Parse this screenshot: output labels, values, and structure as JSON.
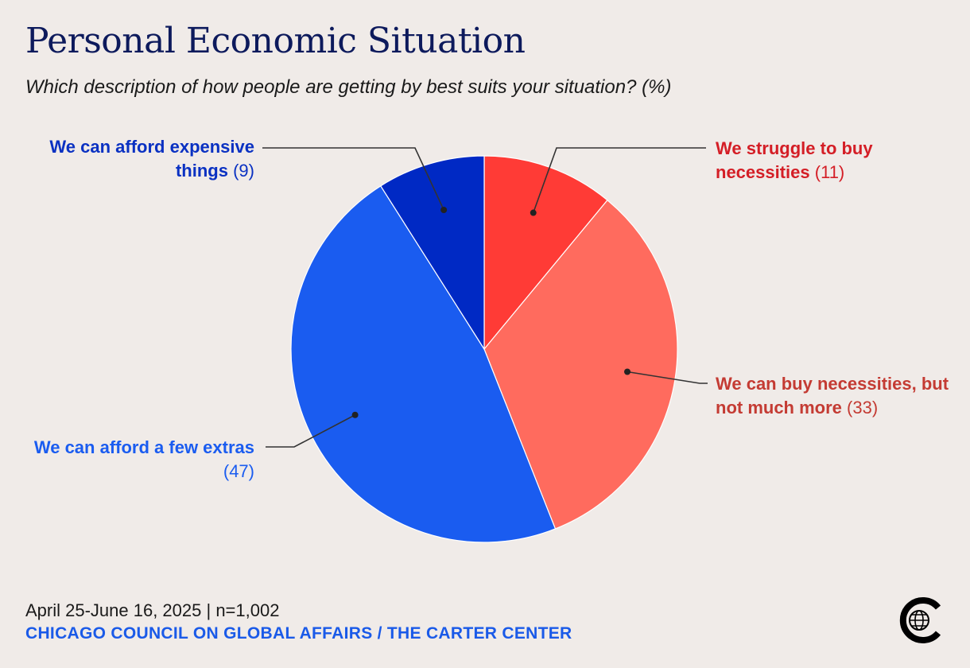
{
  "header": {
    "title": "Personal Economic Situation",
    "subtitle": "Which description of how people are getting by best suits your situation? (%)"
  },
  "footer": {
    "date_line": "April 25-June 16, 2025 | n=1,002",
    "source": "CHICAGO COUNCIL ON GLOBAL AFFAIRS / THE CARTER CENTER"
  },
  "chart_data": {
    "type": "pie",
    "slices": [
      {
        "label": "We struggle to buy necessities",
        "value": 11,
        "value_text": "(11)",
        "color": "#ff3b36",
        "text_color": "#d41e26"
      },
      {
        "label": "We can buy necessities, but not much more",
        "value": 33,
        "value_text": "(33)",
        "color": "#ff6b5e",
        "text_color": "#c43b33"
      },
      {
        "label": "We can afford a few extras",
        "value": 47,
        "value_text": "(47)",
        "color": "#1a5cf0",
        "text_color": "#1a5cf0"
      },
      {
        "label": "We can afford expensive things",
        "value": 9,
        "value_text": "(9)",
        "color": "#0029c4",
        "text_color": "#0a31c2"
      }
    ]
  },
  "logo": {
    "icon": "globe-c-logo-icon"
  }
}
